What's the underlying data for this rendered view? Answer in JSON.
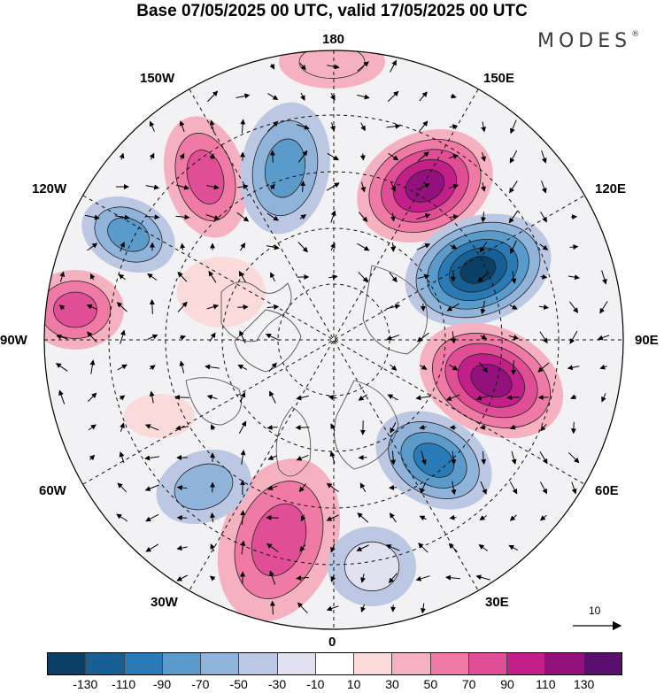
{
  "title": "Base 07/05/2025 00 UTC, valid 17/05/2025 00 UTC",
  "brand": {
    "name": "MODES",
    "mark": "®"
  },
  "map": {
    "projection": "north-polar-stereographic",
    "longitude_labels": {
      "top": "180",
      "top_right": "150E",
      "right_upper": "120E",
      "right": "90E",
      "right_lower": "60E",
      "bottom_right": "30E",
      "bottom": "0",
      "bottom_left": "30W",
      "left_lower": "60W",
      "left": "90W",
      "left_upper": "120W",
      "top_left": "150W"
    },
    "reference_vector": "10"
  },
  "colorbar": {
    "tick_labels": [
      "-130",
      "-110",
      "-90",
      "-70",
      "-50",
      "-30",
      "-10",
      "10",
      "30",
      "50",
      "70",
      "90",
      "110",
      "130"
    ],
    "colors": [
      "#0b3f66",
      "#175f94",
      "#2a7bb5",
      "#5b9bcb",
      "#8fb3d9",
      "#bcc8e3",
      "#e2e1f0",
      "#ffffff",
      "#fbdada",
      "#f6b1c1",
      "#ef7aa5",
      "#e04e96",
      "#c22088",
      "#93117c",
      "#5a0f6e"
    ]
  }
}
